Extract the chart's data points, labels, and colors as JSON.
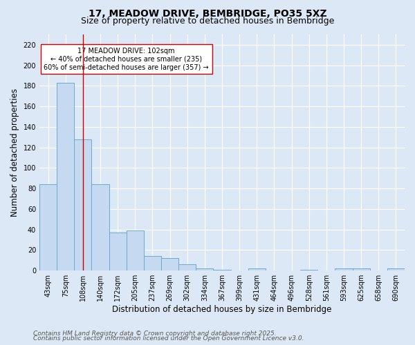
{
  "title_line1": "17, MEADOW DRIVE, BEMBRIDGE, PO35 5XZ",
  "title_line2": "Size of property relative to detached houses in Bembridge",
  "xlabel": "Distribution of detached houses by size in Bembridge",
  "ylabel": "Number of detached properties",
  "categories": [
    "43sqm",
    "75sqm",
    "108sqm",
    "140sqm",
    "172sqm",
    "205sqm",
    "237sqm",
    "269sqm",
    "302sqm",
    "334sqm",
    "367sqm",
    "399sqm",
    "431sqm",
    "464sqm",
    "496sqm",
    "528sqm",
    "561sqm",
    "593sqm",
    "625sqm",
    "658sqm",
    "690sqm"
  ],
  "values": [
    84,
    183,
    128,
    84,
    37,
    39,
    14,
    12,
    6,
    2,
    1,
    0,
    2,
    0,
    0,
    1,
    0,
    2,
    2,
    0,
    2
  ],
  "bar_color": "#c5d9f0",
  "bar_edge_color": "#6aaad4",
  "vline_x_index": 2,
  "vline_color": "#cc0000",
  "annotation_text": "17 MEADOW DRIVE: 102sqm\n← 40% of detached houses are smaller (235)\n60% of semi-detached houses are larger (357) →",
  "annotation_box_color": "#ffffff",
  "annotation_box_edge_color": "#cc0000",
  "annotation_fontsize": 7,
  "ylim": [
    0,
    230
  ],
  "yticks": [
    0,
    20,
    40,
    60,
    80,
    100,
    120,
    140,
    160,
    180,
    200,
    220
  ],
  "background_color": "#dce8f5",
  "plot_bg_color": "#dce8f5",
  "grid_color": "#ffffff",
  "footer_line1": "Contains HM Land Registry data © Crown copyright and database right 2025.",
  "footer_line2": "Contains public sector information licensed under the Open Government Licence v3.0.",
  "title_fontsize": 10,
  "subtitle_fontsize": 9,
  "xlabel_fontsize": 8.5,
  "ylabel_fontsize": 8.5,
  "tick_fontsize": 7,
  "footer_fontsize": 6.5
}
